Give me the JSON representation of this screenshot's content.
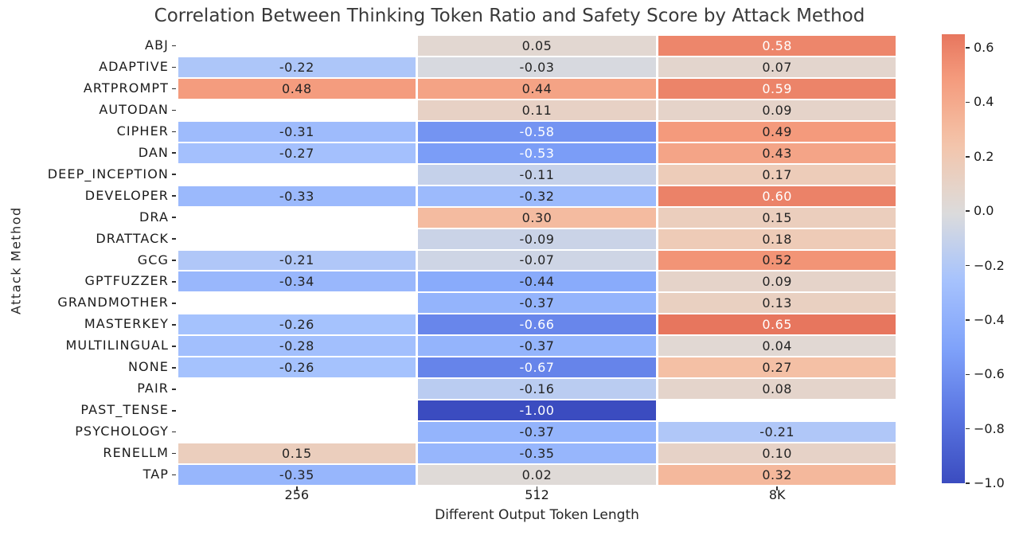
{
  "chart_data": {
    "type": "heatmap",
    "title": "Correlation Between Thinking Token Ratio and Safety Score by Attack Method",
    "xlabel": "Different Output Token Length",
    "ylabel": "Attack Method",
    "x_categories": [
      "256",
      "512",
      "8K"
    ],
    "y_categories": [
      "ABJ",
      "ADAPTIVE",
      "ARTPROMPT",
      "AUTODAN",
      "CIPHER",
      "DAN",
      "DEEP_INCEPTION",
      "DEVELOPER",
      "DRA",
      "DRATTACK",
      "GCG",
      "GPTFUZZER",
      "GRANDMOTHER",
      "MASTERKEY",
      "MULTILINGUAL",
      "NONE",
      "PAIR",
      "PAST_TENSE",
      "PSYCHOLOGY",
      "RENELLM",
      "TAP"
    ],
    "values": [
      [
        null,
        0.05,
        0.58
      ],
      [
        -0.22,
        -0.03,
        0.07
      ],
      [
        0.48,
        0.44,
        0.59
      ],
      [
        null,
        0.11,
        0.09
      ],
      [
        -0.31,
        -0.58,
        0.49
      ],
      [
        -0.27,
        -0.53,
        0.43
      ],
      [
        null,
        -0.11,
        0.17
      ],
      [
        -0.33,
        -0.32,
        0.6
      ],
      [
        null,
        0.3,
        0.15
      ],
      [
        null,
        -0.09,
        0.18
      ],
      [
        -0.21,
        -0.07,
        0.52
      ],
      [
        -0.34,
        -0.44,
        0.09
      ],
      [
        null,
        -0.37,
        0.13
      ],
      [
        -0.26,
        -0.66,
        0.65
      ],
      [
        -0.28,
        -0.37,
        0.04
      ],
      [
        -0.26,
        -0.67,
        0.27
      ],
      [
        null,
        -0.16,
        0.08
      ],
      [
        null,
        -1.0,
        null
      ],
      [
        null,
        -0.37,
        -0.21
      ],
      [
        0.15,
        -0.35,
        0.1
      ],
      [
        -0.35,
        0.02,
        0.32
      ]
    ],
    "value_format": "0.00",
    "colormap": "coolwarm",
    "center": 0,
    "vmin": -1.0,
    "vmax": 0.65,
    "grid": false,
    "legend_position": "colorbar-right",
    "colorbar_tick_values": [
      0.6,
      0.4,
      0.2,
      0.0,
      -0.2,
      -0.4,
      -0.6,
      -0.8,
      -1.0
    ],
    "colorbar_tick_labels": [
      "0.6",
      "0.4",
      "0.2",
      "0.0",
      "−0.2",
      "−0.4",
      "−0.6",
      "−0.8",
      "−1.0"
    ],
    "colors": {
      "cool_end": "#3b4cc0",
      "warm_end": "#b40426",
      "midpoint": "#dddcdb",
      "max_displayed": "#e7765e",
      "background": "#ffffff",
      "annot_dark": "#232323",
      "annot_light": "#ffffff"
    }
  }
}
